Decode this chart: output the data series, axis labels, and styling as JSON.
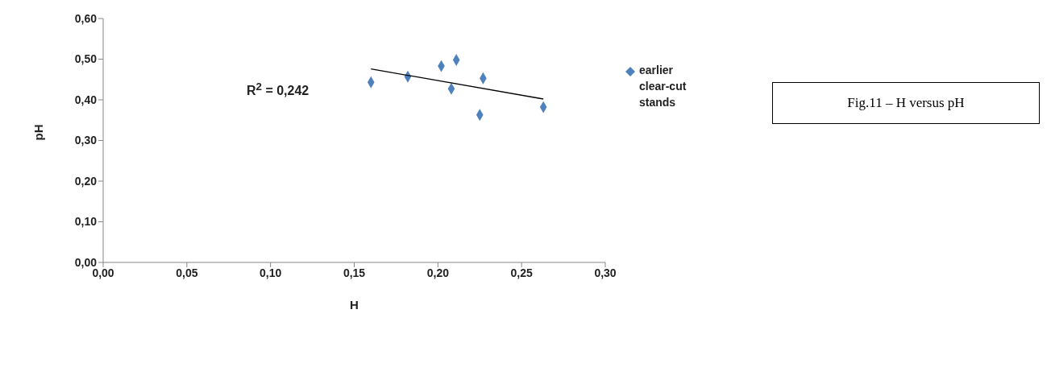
{
  "chart_data": {
    "type": "scatter",
    "title": "Fig.11 – H versus pH",
    "xlabel": "H",
    "ylabel": "pH",
    "annotations": [
      "R$^{2}$ = 0,242"
    ],
    "marker": "diamond",
    "legend": "right",
    "grid": false,
    "xlim": [
      0,
      0.3
    ],
    "xticks": [
      {
        "value": 0,
        "label": "0,00"
      },
      {
        "value": 0.05,
        "label": "0,05"
      },
      {
        "value": 0.1,
        "label": "0,10"
      },
      {
        "value": 0.15,
        "label": "0,15"
      },
      {
        "value": 0.2,
        "label": "0,20"
      },
      {
        "value": 0.25,
        "label": "0,25"
      },
      {
        "value": 0.3,
        "label": "0,30"
      }
    ],
    "ylim": [
      0,
      0.6
    ],
    "yticks": [
      {
        "value": 0,
        "label": "0,00"
      },
      {
        "value": 0.1,
        "label": "0,10"
      },
      {
        "value": 0.2,
        "label": "0,20"
      },
      {
        "value": 0.3,
        "label": "0,30"
      },
      {
        "value": 0.4,
        "label": "0,40"
      },
      {
        "value": 0.5,
        "label": "0,50"
      },
      {
        "value": 0.6,
        "label": "0,60"
      }
    ],
    "series": [
      {
        "name": "earlier clear-cut stands",
        "color": "#4f81bd",
        "x": [
          0.16,
          0.182,
          0.202,
          0.211,
          0.208,
          0.227,
          0.225,
          0.263
        ],
        "values": [
          0.443,
          0.457,
          0.483,
          0.498,
          0.427,
          0.453,
          0.363,
          0.382
        ]
      },
      {
        "type": "line",
        "color": "#000000",
        "marker": "none",
        "x": [
          0.16,
          0.263
        ],
        "values": [
          0.476,
          0.402
        ]
      }
    ]
  }
}
